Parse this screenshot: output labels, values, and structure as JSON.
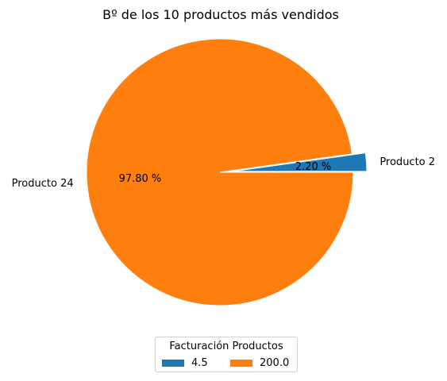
{
  "chart_data": {
    "type": "pie",
    "title": "Bº de los 10 productos más vendidos",
    "slices": [
      {
        "label": "Producto 2",
        "value": 4.5,
        "pct_label": "2.20 %",
        "color": "#1f77b4",
        "explode": true
      },
      {
        "label": "Producto 24",
        "value": 200.0,
        "pct_label": "97.80 %",
        "color": "#ff7f0e",
        "explode": false
      }
    ],
    "legend": {
      "title": "Facturación Productos",
      "placement": "bottom-center",
      "entries": [
        {
          "label": "4.5",
          "color": "#1f77b4"
        },
        {
          "label": "200.0",
          "color": "#ff7f0e"
        }
      ]
    }
  }
}
